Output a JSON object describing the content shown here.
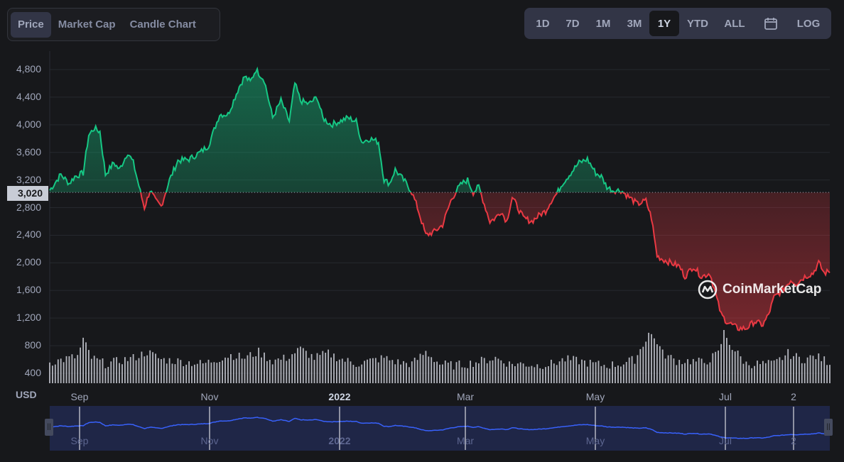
{
  "tabs": [
    {
      "label": "Price",
      "active": true
    },
    {
      "label": "Market Cap",
      "active": false
    },
    {
      "label": "Candle Chart",
      "active": false
    }
  ],
  "ranges": [
    {
      "label": "1D",
      "active": false
    },
    {
      "label": "7D",
      "active": false
    },
    {
      "label": "1M",
      "active": false
    },
    {
      "label": "3M",
      "active": false
    },
    {
      "label": "1Y",
      "active": true
    },
    {
      "label": "YTD",
      "active": false
    },
    {
      "label": "ALL",
      "active": false
    }
  ],
  "calendar_icon": "calendar-icon",
  "log_label": "LOG",
  "currency_label": "USD",
  "watermark": "CoinMarketCap",
  "colors": {
    "up": "#16c784",
    "down": "#ea3943",
    "volume": "#a1a7bb",
    "navigator_line": "#3861fb",
    "navigator_bg": "#1f2647"
  },
  "chart_data": {
    "type": "area",
    "baseline": 3020,
    "baseline_label": "3,020",
    "ylim": [
      400,
      4900
    ],
    "yticks": [
      {
        "v": 4800,
        "label": "4,800"
      },
      {
        "v": 4400,
        "label": "4,400"
      },
      {
        "v": 4000,
        "label": "4,000"
      },
      {
        "v": 3600,
        "label": "3,600"
      },
      {
        "v": 3200,
        "label": "3,200"
      },
      {
        "v": 2800,
        "label": "2,800"
      },
      {
        "v": 2400,
        "label": "2,400"
      },
      {
        "v": 2000,
        "label": "2,000"
      },
      {
        "v": 1600,
        "label": "1,600"
      },
      {
        "v": 1200,
        "label": "1,200"
      },
      {
        "v": 800,
        "label": "800"
      },
      {
        "v": 400,
        "label": "400"
      }
    ],
    "xticks": [
      {
        "d": 12,
        "label": "Sep",
        "bold": false
      },
      {
        "d": 73,
        "label": "Nov",
        "bold": false
      },
      {
        "d": 134,
        "label": "2022",
        "bold": true
      },
      {
        "d": 193,
        "label": "Mar",
        "bold": false
      },
      {
        "d": 254,
        "label": "May",
        "bold": false
      },
      {
        "d": 315,
        "label": "Jul",
        "bold": false
      },
      {
        "d": 347,
        "label": "2",
        "bold": false
      }
    ],
    "price_points": [
      [
        0,
        3050
      ],
      [
        4,
        3280
      ],
      [
        7,
        3150
      ],
      [
        9,
        3250
      ],
      [
        12,
        3300
      ],
      [
        14,
        3850
      ],
      [
        16,
        3950
      ],
      [
        18,
        3900
      ],
      [
        20,
        3280
      ],
      [
        23,
        3450
      ],
      [
        25,
        3350
      ],
      [
        28,
        3600
      ],
      [
        30,
        3450
      ],
      [
        33,
        2950
      ],
      [
        34,
        2800
      ],
      [
        36,
        3050
      ],
      [
        38,
        2900
      ],
      [
        40,
        2820
      ],
      [
        43,
        3200
      ],
      [
        46,
        3480
      ],
      [
        50,
        3500
      ],
      [
        54,
        3600
      ],
      [
        57,
        3700
      ],
      [
        61,
        4150
      ],
      [
        64,
        4150
      ],
      [
        68,
        4550
      ],
      [
        70,
        4700
      ],
      [
        72,
        4620
      ],
      [
        74,
        4800
      ],
      [
        77,
        4650
      ],
      [
        80,
        4100
      ],
      [
        83,
        4350
      ],
      [
        86,
        4050
      ],
      [
        88,
        4600
      ],
      [
        90,
        4350
      ],
      [
        93,
        4300
      ],
      [
        96,
        4400
      ],
      [
        98,
        4100
      ],
      [
        101,
        4000
      ],
      [
        104,
        4050
      ],
      [
        107,
        4100
      ],
      [
        110,
        4050
      ],
      [
        112,
        3750
      ],
      [
        115,
        3800
      ],
      [
        118,
        3750
      ],
      [
        120,
        3200
      ],
      [
        122,
        3150
      ],
      [
        124,
        3350
      ],
      [
        126,
        3250
      ],
      [
        128,
        3150
      ],
      [
        130,
        3020
      ],
      [
        132,
        2800
      ],
      [
        135,
        2400
      ],
      [
        138,
        2450
      ],
      [
        141,
        2550
      ],
      [
        144,
        2900
      ],
      [
        146,
        3050
      ],
      [
        148,
        3150
      ],
      [
        150,
        3200
      ],
      [
        152,
        3020
      ],
      [
        154,
        3100
      ],
      [
        156,
        2850
      ],
      [
        158,
        2600
      ],
      [
        160,
        2650
      ],
      [
        162,
        2750
      ],
      [
        164,
        2600
      ],
      [
        166,
        2950
      ],
      [
        168,
        2800
      ],
      [
        170,
        2650
      ],
      [
        173,
        2600
      ],
      [
        176,
        2700
      ],
      [
        178,
        2750
      ],
      [
        180,
        2900
      ],
      [
        182,
        3000
      ],
      [
        184,
        3150
      ],
      [
        187,
        3300
      ],
      [
        190,
        3450
      ],
      [
        193,
        3500
      ],
      [
        196,
        3300
      ],
      [
        198,
        3250
      ],
      [
        200,
        3100
      ],
      [
        202,
        3050
      ],
      [
        205,
        3050
      ],
      [
        208,
        2950
      ],
      [
        211,
        2850
      ],
      [
        214,
        2900
      ],
      [
        216,
        2650
      ],
      [
        218,
        2100
      ],
      [
        220,
        2050
      ],
      [
        223,
        2000
      ],
      [
        226,
        1950
      ],
      [
        228,
        1800
      ],
      [
        231,
        1950
      ],
      [
        234,
        1800
      ],
      [
        237,
        1850
      ],
      [
        239,
        1550
      ],
      [
        241,
        1250
      ],
      [
        243,
        1150
      ],
      [
        245,
        1100
      ],
      [
        247,
        1050
      ],
      [
        250,
        1050
      ],
      [
        253,
        1150
      ],
      [
        256,
        1100
      ],
      [
        258,
        1250
      ],
      [
        260,
        1500
      ],
      [
        263,
        1600
      ],
      [
        266,
        1750
      ],
      [
        268,
        1700
      ],
      [
        271,
        1800
      ],
      [
        274,
        1850
      ],
      [
        276,
        2000
      ],
      [
        278,
        1850
      ],
      [
        280,
        1880
      ]
    ],
    "volume_points": [
      [
        0,
        580
      ],
      [
        5,
        620
      ],
      [
        10,
        660
      ],
      [
        12,
        880
      ],
      [
        15,
        640
      ],
      [
        20,
        560
      ],
      [
        25,
        600
      ],
      [
        30,
        640
      ],
      [
        35,
        720
      ],
      [
        40,
        620
      ],
      [
        45,
        600
      ],
      [
        50,
        580
      ],
      [
        55,
        560
      ],
      [
        60,
        620
      ],
      [
        65,
        680
      ],
      [
        70,
        640
      ],
      [
        75,
        720
      ],
      [
        80,
        600
      ],
      [
        85,
        640
      ],
      [
        90,
        760
      ],
      [
        95,
        640
      ],
      [
        100,
        700
      ],
      [
        105,
        620
      ],
      [
        110,
        560
      ],
      [
        115,
        600
      ],
      [
        120,
        640
      ],
      [
        125,
        580
      ],
      [
        130,
        560
      ],
      [
        135,
        720
      ],
      [
        140,
        560
      ],
      [
        145,
        540
      ],
      [
        150,
        560
      ],
      [
        155,
        600
      ],
      [
        160,
        640
      ],
      [
        165,
        560
      ],
      [
        170,
        560
      ],
      [
        175,
        540
      ],
      [
        180,
        560
      ],
      [
        185,
        620
      ],
      [
        190,
        600
      ],
      [
        195,
        560
      ],
      [
        200,
        540
      ],
      [
        205,
        560
      ],
      [
        210,
        620
      ],
      [
        213,
        820
      ],
      [
        215,
        980
      ],
      [
        218,
        860
      ],
      [
        220,
        700
      ],
      [
        225,
        600
      ],
      [
        230,
        600
      ],
      [
        235,
        580
      ],
      [
        240,
        700
      ],
      [
        242,
        980
      ],
      [
        245,
        780
      ],
      [
        250,
        560
      ],
      [
        255,
        560
      ],
      [
        260,
        560
      ],
      [
        265,
        700
      ],
      [
        270,
        620
      ],
      [
        275,
        660
      ],
      [
        280,
        580
      ]
    ],
    "navigator_ticks": [
      {
        "d": 12,
        "label": "Sep",
        "bold": false
      },
      {
        "d": 73,
        "label": "Nov",
        "bold": false
      },
      {
        "d": 134,
        "label": "2022",
        "bold": true
      },
      {
        "d": 193,
        "label": "Mar",
        "bold": false
      },
      {
        "d": 254,
        "label": "May",
        "bold": false
      },
      {
        "d": 315,
        "label": "Jul",
        "bold": false
      },
      {
        "d": 347,
        "label": "2",
        "bold": false
      }
    ]
  }
}
